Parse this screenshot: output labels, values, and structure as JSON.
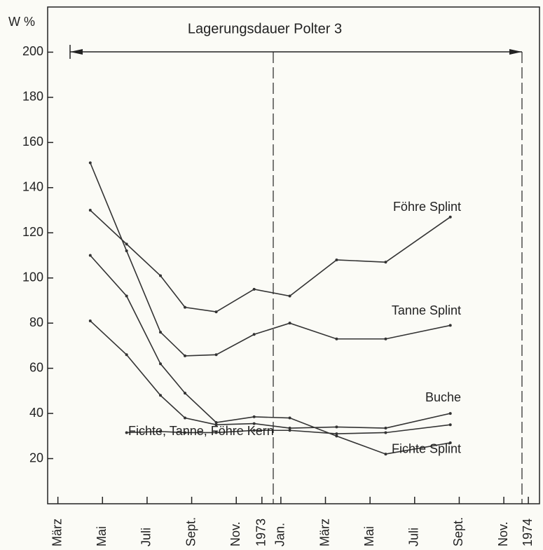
{
  "chart_data": {
    "type": "line",
    "title": "Lagerungsdauer Polter 3",
    "y_label": "W %",
    "x": [
      1.45,
      3.08,
      4.6,
      5.7,
      7.1,
      8.8,
      10.4,
      12.5,
      14.7,
      17.6
    ],
    "xlim": [
      -0.46,
      21.6
    ],
    "xticks": [
      {
        "value": 0,
        "label": "März"
      },
      {
        "value": 2,
        "label": "Mai"
      },
      {
        "value": 4,
        "label": "Juli"
      },
      {
        "value": 6,
        "label": "Sept."
      },
      {
        "value": 8,
        "label": "Nov."
      },
      {
        "value": 9.15,
        "label": "1973"
      },
      {
        "value": 10,
        "label": "Jan."
      },
      {
        "value": 12,
        "label": "März"
      },
      {
        "value": 14,
        "label": "Mai"
      },
      {
        "value": 16,
        "label": "Juli"
      },
      {
        "value": 18,
        "label": "Sept."
      },
      {
        "value": 20,
        "label": "Nov."
      },
      {
        "value": 21.1,
        "label": "1974"
      }
    ],
    "ylim": [
      0,
      220
    ],
    "yticks": [
      20,
      40,
      60,
      80,
      100,
      120,
      140,
      160,
      180,
      200
    ],
    "series": [
      {
        "name": "Föhre Splint",
        "color": "#333333",
        "values": [
          130,
          115,
          101,
          87,
          85,
          95,
          92,
          108,
          107,
          127
        ]
      },
      {
        "name": "Tanne Splint",
        "color": "#333333",
        "values": [
          151,
          112,
          76,
          65.5,
          66,
          75,
          80,
          73,
          73,
          79
        ]
      },
      {
        "name": "Buche",
        "color": "#333333",
        "values": [
          81,
          66,
          48,
          38,
          35,
          35.5,
          33.5,
          34,
          33.5,
          40
        ]
      },
      {
        "name": "Fichte Splint",
        "color": "#333333",
        "values": [
          110,
          92,
          62,
          49,
          36,
          38.5,
          38,
          30,
          22,
          27
        ]
      },
      {
        "name": "Fichte, Tanne, Föhre Kern",
        "color": "#333333",
        "values": [
          null,
          31.5,
          32,
          31.5,
          31.5,
          32.5,
          32.5,
          31,
          31.5,
          35
        ]
      }
    ]
  }
}
